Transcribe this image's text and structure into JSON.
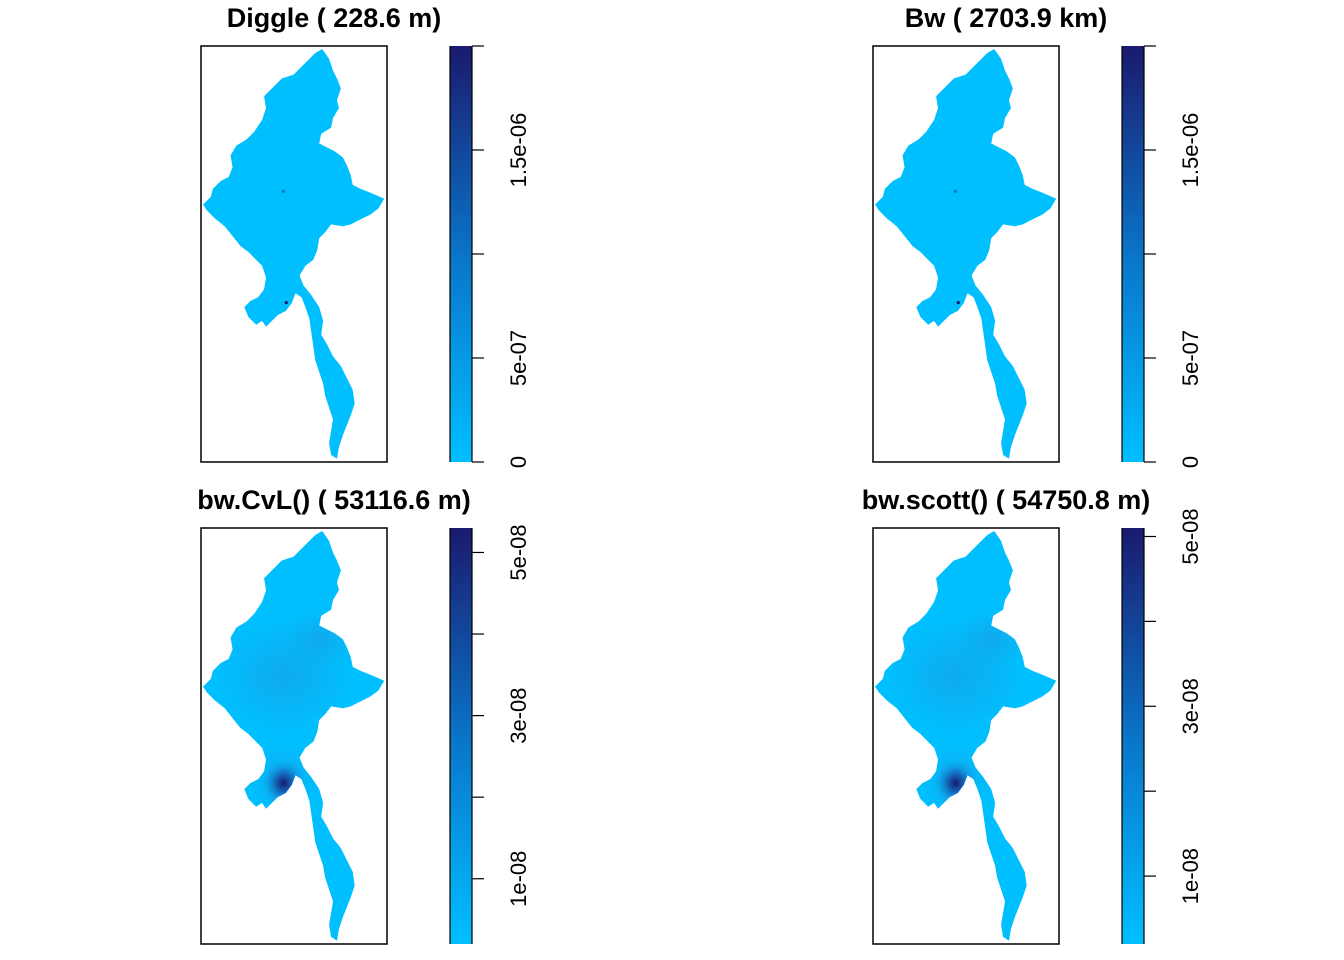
{
  "figure": {
    "panels": [
      {
        "id": "diggle",
        "title": "Diggle ( 228.6 m)",
        "legend": {
          "range": [
            0,
            2e-06
          ],
          "tick_values": [
            0,
            5e-07,
            1e-06,
            1.5e-06,
            2e-06
          ],
          "labeled_ticks": [
            "0",
            "5e-07",
            "1.5e-06"
          ],
          "labeled_values": [
            0,
            5e-07,
            1.5e-06
          ]
        },
        "surface": "near-uniform"
      },
      {
        "id": "bw",
        "title": "Bw ( 2703.9 km)",
        "legend": {
          "range": [
            0,
            2e-06
          ],
          "tick_values": [
            0,
            5e-07,
            1e-06,
            1.5e-06,
            2e-06
          ],
          "labeled_ticks": [
            "0",
            "5e-07",
            "1.5e-06"
          ],
          "labeled_values": [
            0,
            5e-07,
            1.5e-06
          ]
        },
        "surface": "near-uniform"
      },
      {
        "id": "cvl",
        "title": "bw.CvL() ( 53116.6 m)",
        "legend": {
          "range": [
            2e-09,
            5.3e-08
          ],
          "tick_values": [
            1e-08,
            2e-08,
            3e-08,
            4e-08,
            5e-08
          ],
          "labeled_ticks": [
            "1e-08",
            "3e-08",
            "5e-08"
          ],
          "labeled_values": [
            1e-08,
            3e-08,
            5e-08
          ]
        },
        "surface": "smooth-hotspot"
      },
      {
        "id": "scott",
        "title": "bw.scott() ( 54750.8 m)",
        "legend": {
          "range": [
            2e-09,
            5.1e-08
          ],
          "tick_values": [
            1e-08,
            2e-08,
            3e-08,
            4e-08,
            5e-08
          ],
          "labeled_ticks": [
            "1e-08",
            "3e-08",
            "5e-08"
          ],
          "labeled_values": [
            1e-08,
            3e-08,
            5e-08
          ]
        },
        "surface": "smooth-hotspot"
      }
    ],
    "colors": {
      "low": "#00BFFF",
      "high": "#1A1A6E",
      "frame": "#000000",
      "background": "#FFFFFF"
    }
  }
}
